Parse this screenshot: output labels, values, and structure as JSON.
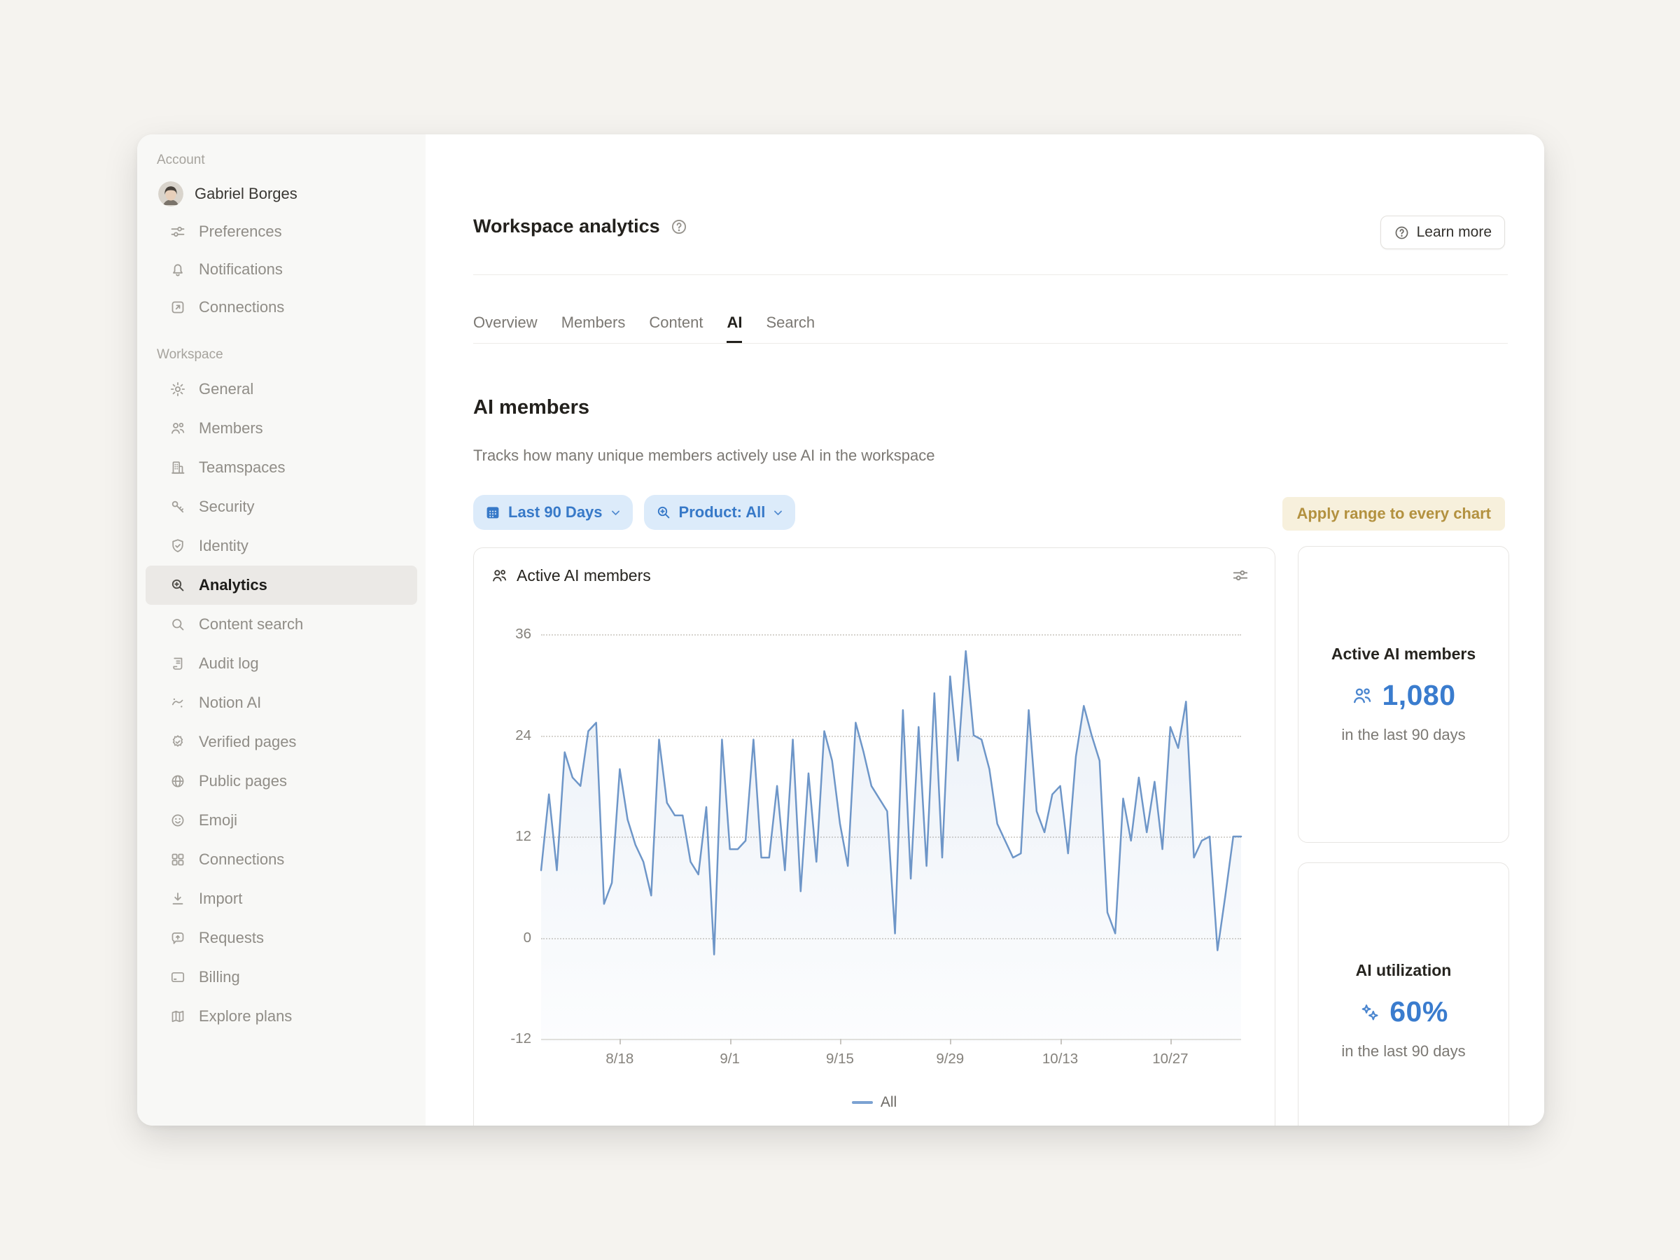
{
  "sidebar": {
    "account_label": "Account",
    "workspace_label": "Workspace",
    "user": {
      "name": "Gabriel Borges",
      "avatar_icon": "user-portrait-avatar"
    },
    "account_items": [
      {
        "label": "Preferences",
        "icon": "sliders-icon"
      },
      {
        "label": "Notifications",
        "icon": "bell-icon"
      },
      {
        "label": "Connections",
        "icon": "arrow-up-right-square-icon"
      }
    ],
    "workspace_items": [
      {
        "label": "General",
        "icon": "gear-icon"
      },
      {
        "label": "Members",
        "icon": "people-icon"
      },
      {
        "label": "Teamspaces",
        "icon": "building-icon"
      },
      {
        "label": "Security",
        "icon": "key-icon"
      },
      {
        "label": "Identity",
        "icon": "shield-check-icon"
      },
      {
        "label": "Analytics",
        "icon": "zoom-in-icon",
        "selected": true
      },
      {
        "label": "Content search",
        "icon": "search-icon"
      },
      {
        "label": "Audit log",
        "icon": "scroll-icon"
      },
      {
        "label": "Notion AI",
        "icon": "wand-icon"
      },
      {
        "label": "Verified pages",
        "icon": "verified-badge-icon"
      },
      {
        "label": "Public pages",
        "icon": "globe-icon"
      },
      {
        "label": "Emoji",
        "icon": "smiley-icon"
      },
      {
        "label": "Connections",
        "icon": "grid-icon"
      },
      {
        "label": "Import",
        "icon": "import-icon"
      },
      {
        "label": "Requests",
        "icon": "request-bubble-icon"
      },
      {
        "label": "Billing",
        "icon": "credit-card-icon"
      },
      {
        "label": "Explore plans",
        "icon": "map-icon"
      }
    ]
  },
  "header": {
    "title": "Workspace analytics",
    "help_icon": "help-circle-icon",
    "learn_more_label": "Learn more",
    "tabs": [
      "Overview",
      "Members",
      "Content",
      "AI",
      "Search"
    ],
    "active_tab": "AI"
  },
  "section": {
    "heading": "AI members",
    "description": "Tracks how many unique members actively use AI in the workspace",
    "filters": {
      "date_range_label": "Last 90 Days",
      "date_range_icon": "calendar-icon",
      "product_label": "Product: All",
      "product_icon": "zoom-in-icon"
    },
    "apply_button_label": "Apply range to every chart"
  },
  "chart_card": {
    "title": "Active AI members",
    "icon": "people-icon",
    "settings_icon": "sliders-icon"
  },
  "chart_data": {
    "type": "line",
    "title": "Active AI members",
    "ylim": [
      -12,
      36
    ],
    "y_ticks": [
      36,
      24,
      12,
      0,
      -12
    ],
    "x_tick_labels": [
      "8/18",
      "9/1",
      "9/15",
      "9/29",
      "10/13",
      "10/27"
    ],
    "x_tick_days": [
      10,
      24,
      38,
      52,
      66,
      80
    ],
    "grid": "dotted-horizontal",
    "legend_position": "bottom",
    "series": [
      {
        "name": "All",
        "values": [
          8,
          17,
          8,
          22,
          19,
          18,
          24.5,
          25.5,
          4,
          6.5,
          20,
          14,
          11,
          9,
          5,
          23.5,
          16,
          14.5,
          14.5,
          9,
          7.5,
          15.5,
          -2,
          23.5,
          10.5,
          10.5,
          11.5,
          23.5,
          9.5,
          9.5,
          18,
          8,
          23.5,
          5.5,
          19.5,
          9,
          24.5,
          21,
          13.5,
          8.5,
          25.5,
          22,
          18,
          16.5,
          15,
          0.5,
          27,
          7,
          25,
          8.5,
          29,
          9.5,
          31,
          21,
          34,
          24,
          23.5,
          20,
          13.5,
          11.5,
          9.5,
          10,
          27,
          15,
          12.5,
          17,
          18,
          10,
          21.5,
          27.5,
          24,
          21,
          3,
          0.5,
          16.5,
          11.5,
          19,
          12.5,
          18.5,
          10.5,
          25,
          22.5,
          28,
          9.5,
          11.5,
          12,
          -1.5,
          5,
          12,
          12
        ]
      }
    ]
  },
  "summary_cards": [
    {
      "title": "Active AI members",
      "icon": "people-icon",
      "value": "1,080",
      "caption": "in the last 90 days"
    },
    {
      "title": "AI utilization",
      "icon": "sparkles-icon",
      "value": "60%",
      "caption": "in the last 90 days"
    }
  ],
  "colors": {
    "accent_blue": "#3a7cce",
    "pill_bg": "#dcebfa",
    "pill_text": "#3779c8",
    "gold_text": "#b3913f",
    "gold_bg": "#f7f0dc",
    "chart_line": "#6e96c8",
    "sidebar_bg": "#f8f8f6",
    "page_bg": "#f5f3ef"
  }
}
